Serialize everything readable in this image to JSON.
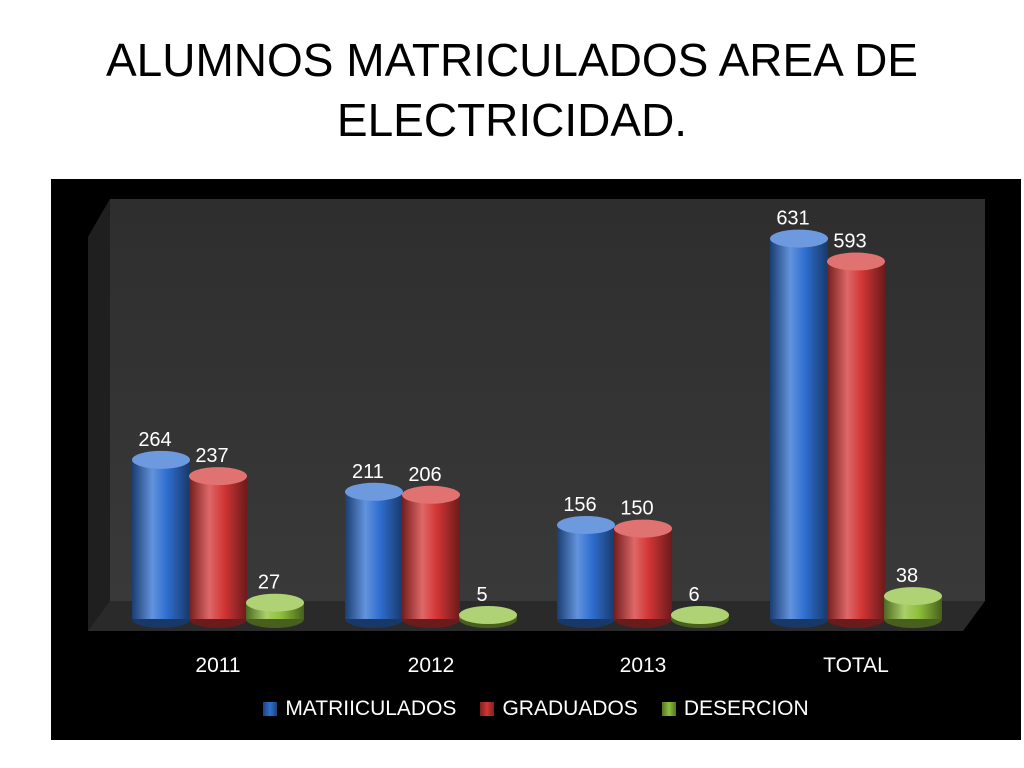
{
  "page": {
    "title_line1": "ALUMNOS MATRICULADOS AREA DE",
    "title_line2": "ELECTRICIDAD."
  },
  "colors": {
    "MATRIICULADOS": "#2f6fd0",
    "GRADUADOS": "#d33535",
    "DESERCION": "#8dbf3a",
    "chart_background": "#000000",
    "plot_wall": "#3a3a3a"
  },
  "chart_data": {
    "type": "bar",
    "style": "3d-cylinder",
    "categories": [
      "2011",
      "2012",
      "2013",
      "TOTAL"
    ],
    "series": [
      {
        "name": "MATRIICULADOS",
        "values": [
          264,
          211,
          156,
          631
        ]
      },
      {
        "name": "GRADUADOS",
        "values": [
          237,
          206,
          150,
          593
        ]
      },
      {
        "name": "DESERCION",
        "values": [
          27,
          5,
          6,
          38
        ]
      }
    ],
    "ylim": [
      0,
      700
    ],
    "grid": false,
    "legend_position": "bottom",
    "data_labels": true
  }
}
